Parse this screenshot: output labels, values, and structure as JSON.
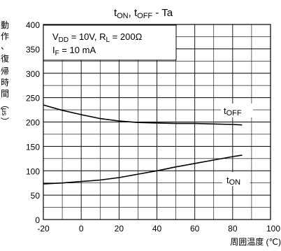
{
  "chart_data": {
    "type": "line",
    "title": {
      "base": "t",
      "sub1": "ON",
      "mid": ", t",
      "sub2": "OFF",
      "tail": " - Ta"
    },
    "ylabel": "動作・復帰時間（μs）",
    "ylabel_chars": [
      "動",
      "作",
      "、",
      "復",
      "帰",
      "時",
      "間",
      "︵",
      "μs",
      "︶"
    ],
    "xlabel": "周囲温度 (℃)",
    "xlim": [
      -20,
      100
    ],
    "ylim": [
      0,
      400
    ],
    "x_ticks": [
      -20,
      0,
      20,
      40,
      60,
      80,
      100
    ],
    "y_ticks": [
      0,
      50,
      100,
      150,
      200,
      250,
      300,
      350,
      400
    ],
    "x_minor_step": 10,
    "y_minor_step": 25,
    "grid": true,
    "conditions": {
      "line1": {
        "a": "V",
        "a_sub": "DD",
        "b": " = 10V, R",
        "b_sub": "L",
        "c": " = 200Ω"
      },
      "line2": {
        "a": "I",
        "a_sub": "F",
        "b": " = 10 mA"
      }
    },
    "series": [
      {
        "name": "tOFF",
        "label": {
          "base": "t",
          "sub": "OFF"
        },
        "x": [
          -20,
          -10,
          0,
          10,
          20,
          30,
          40,
          50,
          60,
          70,
          80,
          85
        ],
        "y": [
          235,
          224,
          215,
          207,
          202,
          199,
          198,
          197,
          197,
          196,
          195,
          194
        ]
      },
      {
        "name": "tON",
        "label": {
          "base": "t",
          "sub": "ON"
        },
        "x": [
          -20,
          -10,
          0,
          10,
          20,
          30,
          40,
          50,
          60,
          70,
          80,
          85
        ],
        "y": [
          73,
          75,
          78,
          81,
          86,
          93,
          100,
          108,
          115,
          122,
          129,
          132
        ]
      }
    ]
  }
}
